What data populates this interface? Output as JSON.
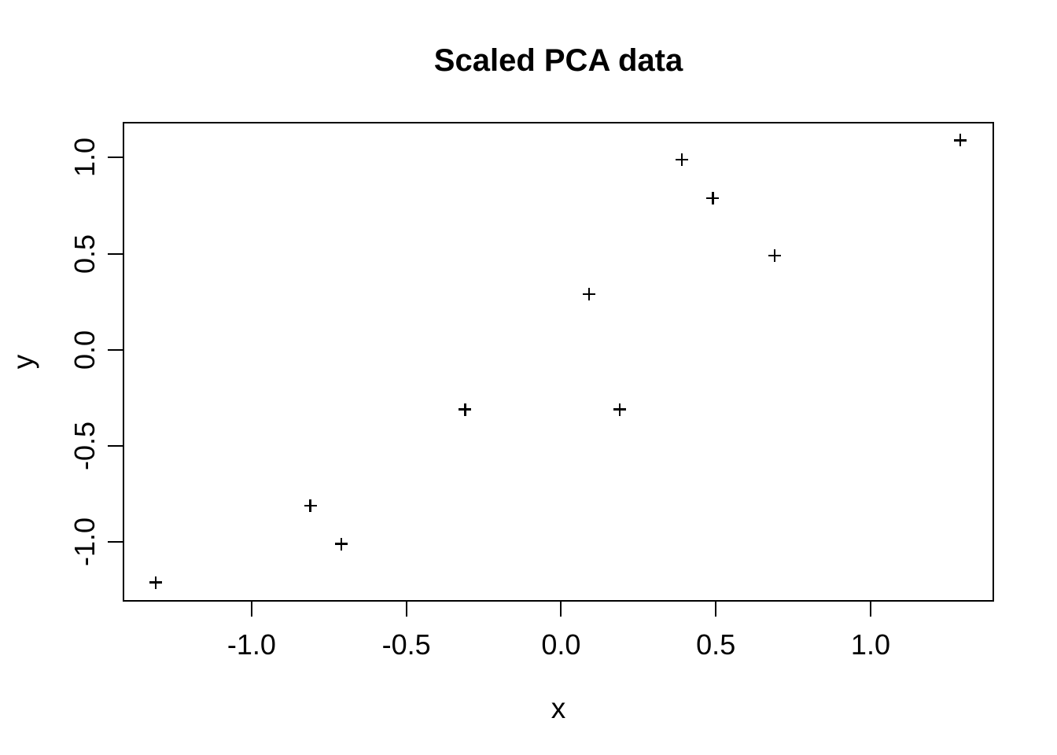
{
  "chart_data": {
    "type": "scatter",
    "title": "Scaled PCA data",
    "xlabel": "x",
    "ylabel": "y",
    "marker": "plus",
    "grid": false,
    "legend": null,
    "colors": {
      "foreground": "#000000",
      "background": "#ffffff"
    },
    "xlim": [
      -1.414,
      1.394
    ],
    "ylim": [
      -1.302,
      1.182
    ],
    "x_ticks": [
      {
        "value": -1.0,
        "label": "-1.0"
      },
      {
        "value": -0.5,
        "label": "-0.5"
      },
      {
        "value": 0.0,
        "label": "0.0"
      },
      {
        "value": 0.5,
        "label": "0.5"
      },
      {
        "value": 1.0,
        "label": "1.0"
      }
    ],
    "y_ticks": [
      {
        "value": -1.0,
        "label": "-1.0"
      },
      {
        "value": -0.5,
        "label": "-0.5"
      },
      {
        "value": 0.0,
        "label": "0.0"
      },
      {
        "value": 0.5,
        "label": "0.5"
      },
      {
        "value": 1.0,
        "label": "1.0"
      }
    ],
    "points": [
      {
        "x": 0.69,
        "y": 0.49
      },
      {
        "x": -1.31,
        "y": -1.21
      },
      {
        "x": 0.39,
        "y": 0.99
      },
      {
        "x": 0.09,
        "y": 0.29
      },
      {
        "x": 1.29,
        "y": 1.09
      },
      {
        "x": 0.49,
        "y": 0.79
      },
      {
        "x": 0.19,
        "y": -0.31
      },
      {
        "x": -0.81,
        "y": -0.81
      },
      {
        "x": -0.31,
        "y": -0.31
      },
      {
        "x": -0.71,
        "y": -1.01
      }
    ]
  }
}
